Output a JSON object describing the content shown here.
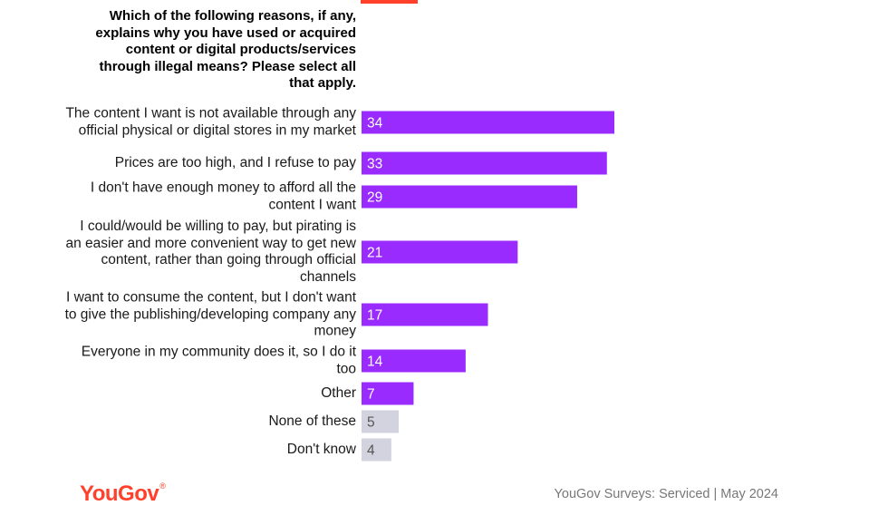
{
  "question": "Which of the following reasons, if any, explains why you have used or acquired content or digital products/services through illegal means? Please select all that apply.",
  "colors": {
    "accent": "#ff412c",
    "bar_primary": "#9a2bff",
    "bar_muted": "#d2d3de",
    "logo": "#ff412c"
  },
  "chart_data": {
    "type": "bar",
    "orientation": "horizontal",
    "categories": [
      "The content I want is not available through any official physical or digital stores in my market",
      "Prices are too high, and I refuse to pay",
      "I don't have enough money to afford all the content I want",
      "I could/would be willing to pay, but pirating is an easier and more convenient way to get new content, rather than going through official channels",
      "I want to consume the content, but I don't want to give the publishing/developing company any money",
      "Everyone in my community does it, so I do it too",
      "Other",
      "None of these",
      "Don't know"
    ],
    "values": [
      34,
      33,
      29,
      21,
      17,
      14,
      7,
      5,
      4
    ],
    "muted": [
      false,
      false,
      false,
      false,
      false,
      false,
      false,
      true,
      true
    ],
    "data_labels": true,
    "grid": false
  },
  "footer": {
    "logo_text": "YouGov",
    "logo_mark": "®",
    "source": "YouGov Surveys: Serviced | May 2024"
  }
}
